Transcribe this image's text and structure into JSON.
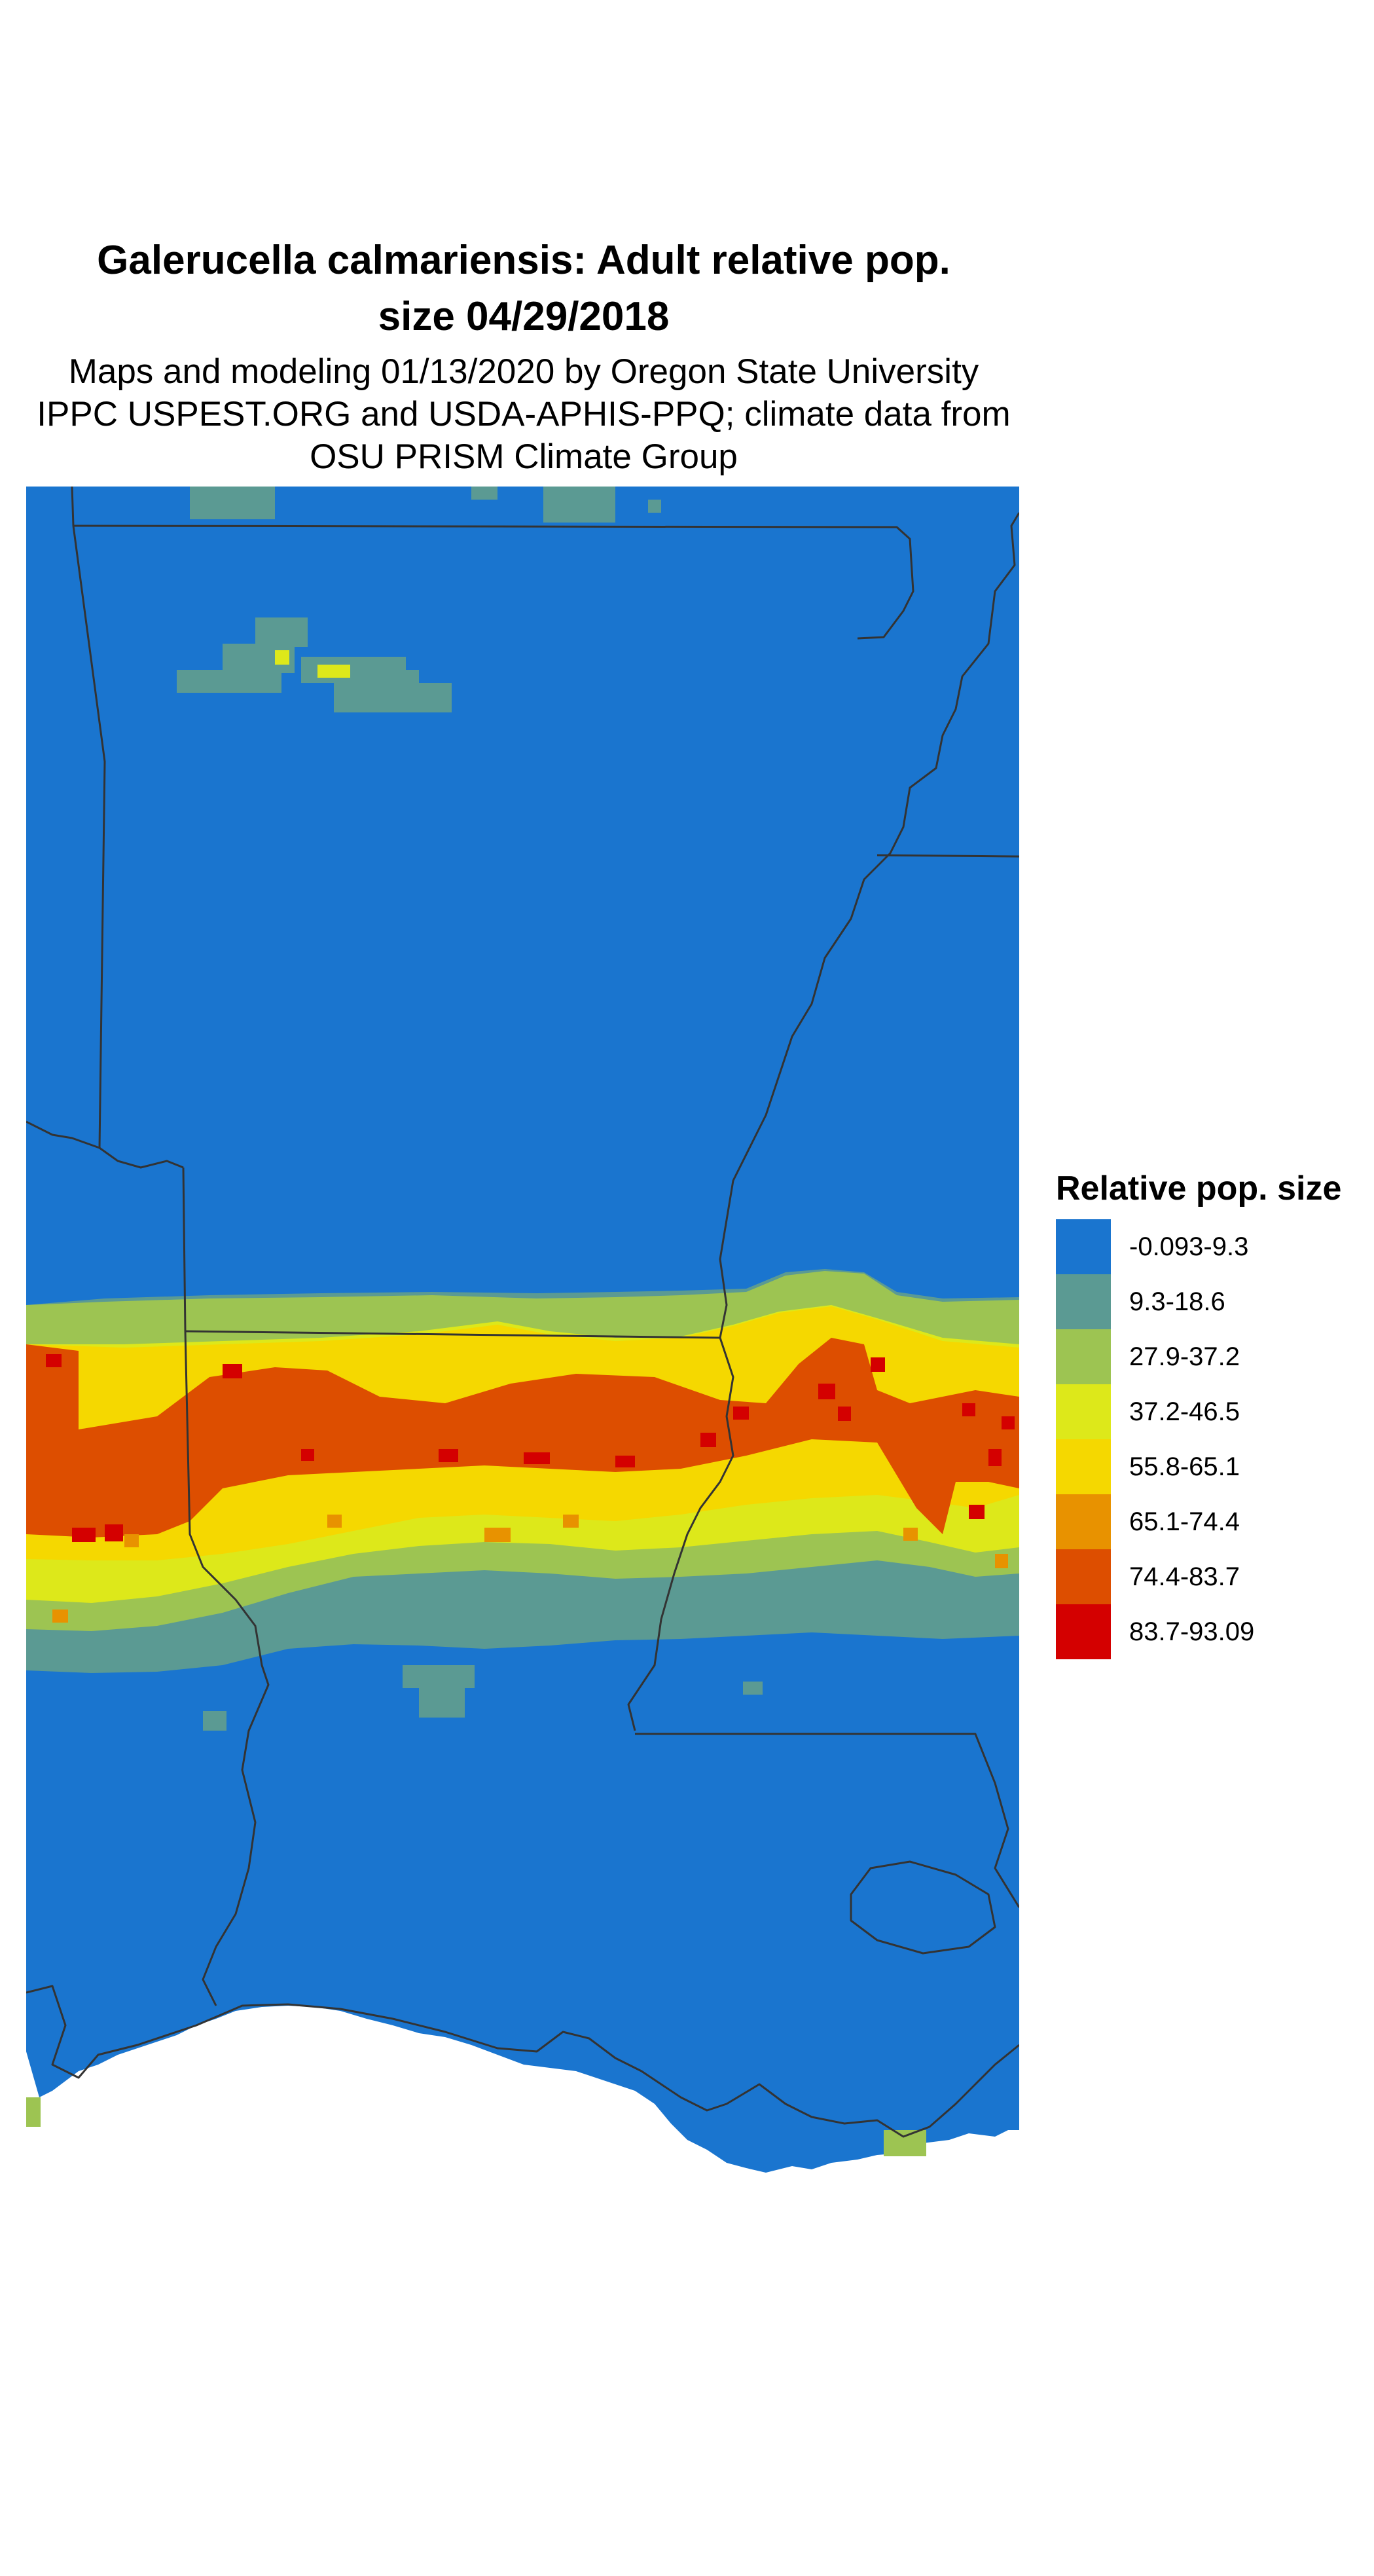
{
  "title": {
    "line1": "Galerucella calmariensis: Adult relative pop.",
    "line2": "size 04/29/2018"
  },
  "subtitle": {
    "line1": "Maps and modeling 01/13/2020 by Oregon State University",
    "line2": "IPPC USPEST.ORG and USDA-APHIS-PPQ; climate data from",
    "line3": "OSU PRISM Climate Group"
  },
  "legend": {
    "title": "Relative pop. size",
    "items": [
      {
        "label": "-0.093-9.3",
        "color": "#1a75cf"
      },
      {
        "label": "9.3-18.6",
        "color": "#5b9a93"
      },
      {
        "label": "27.9-37.2",
        "color": "#9dc452"
      },
      {
        "label": "37.2-46.5",
        "color": "#dde81a"
      },
      {
        "label": "55.8-65.1",
        "color": "#f5d800"
      },
      {
        "label": "65.1-74.4",
        "color": "#e89200"
      },
      {
        "label": "74.4-83.7",
        "color": "#dd4e00"
      },
      {
        "label": "83.7-93.09",
        "color": "#d40000"
      }
    ]
  }
}
